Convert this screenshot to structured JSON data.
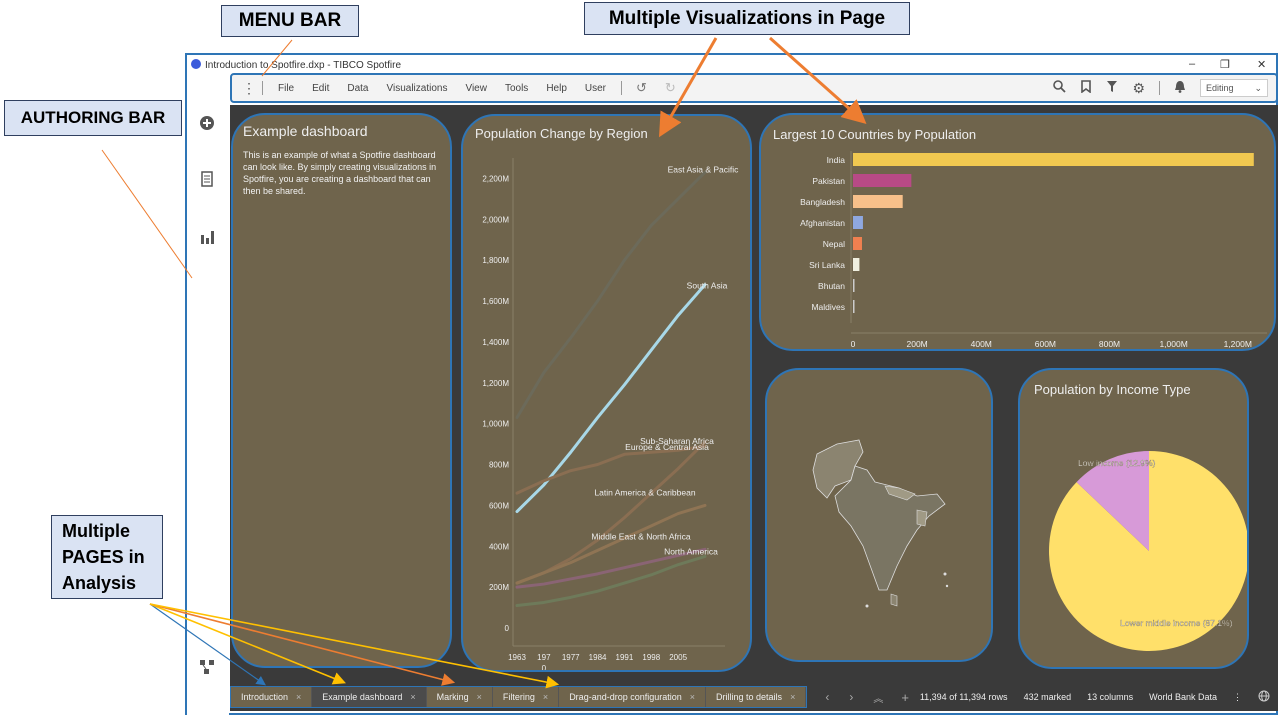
{
  "annotations": {
    "menu_bar": "MENU BAR",
    "multi_viz": "Multiple Visualizations in Page",
    "authoring_bar": "AUTHORING BAR",
    "multi_pages_l1": "Multiple",
    "multi_pages_l2": "PAGES in",
    "multi_pages_l3": "Analysis"
  },
  "window": {
    "title": "Introduction to Spotfire.dxp - TIBCO Spotfire",
    "minimize": "–",
    "restore": "❐",
    "close": "✕"
  },
  "menu": {
    "items": [
      "File",
      "Edit",
      "Data",
      "Visualizations",
      "View",
      "Tools",
      "Help",
      "User"
    ],
    "mode": "Editing"
  },
  "icons": {
    "more": "kebab-icon",
    "undo": "undo-icon",
    "redo": "redo-icon",
    "search": "search-icon",
    "bookmark": "bookmark-icon",
    "filter": "filter-icon",
    "settings": "gear-icon",
    "notification": "bell-icon",
    "chevron": "chevron-down-icon"
  },
  "text_panel": {
    "title": "Example dashboard",
    "body": "This is an example of what a Spotfire dashboard can look like. By simply creating visualizations in Spotfire, you are creating a dashboard that can then be shared."
  },
  "colors": {
    "panel_bg": "#6f644c",
    "canvas_bg": "#3a3a3a",
    "annotation_blue": "#2e75b6",
    "arrow_orange": "#ed7d31",
    "arrow_gold": "#ffc000"
  },
  "chart_data": [
    {
      "type": "line",
      "title": "Population Change by Region",
      "x": [
        1963,
        1970,
        1977,
        1984,
        1991,
        1998,
        2005,
        2012
      ],
      "x_tick_labels": [
        "1963",
        "197",
        "1977",
        "1984",
        "1991",
        "1998",
        "2005"
      ],
      "x_tick_sublabel": "0",
      "y_ticks": [
        "0",
        "200M",
        "400M",
        "600M",
        "800M",
        "1,000M",
        "1,200M",
        "1,400M",
        "1,600M",
        "1,800M",
        "2,000M",
        "2,200M"
      ],
      "ylim": [
        0,
        2300
      ],
      "series": [
        {
          "name": "East Asia & Pacific",
          "color": "#6c6a5a",
          "values": [
            1030,
            1250,
            1420,
            1600,
            1800,
            1970,
            2100,
            2230
          ]
        },
        {
          "name": "South Asia",
          "color": "#a8d8e8",
          "values": [
            570,
            700,
            860,
            1030,
            1190,
            1360,
            1530,
            1680
          ]
        },
        {
          "name": "Sub-Saharan Africa",
          "color": "#8a6e52",
          "values": [
            220,
            270,
            340,
            430,
            540,
            660,
            780,
            910
          ]
        },
        {
          "name": "Europe & Central Asia",
          "color": "#8a6e52",
          "values": [
            660,
            720,
            770,
            800,
            850,
            860,
            870,
            890
          ]
        },
        {
          "name": "Latin America & Caribbean",
          "color": "#8f7454",
          "values": [
            220,
            270,
            320,
            380,
            440,
            500,
            560,
            600
          ]
        },
        {
          "name": "Middle East & North Africa",
          "color": "#8a6474",
          "values": [
            200,
            215,
            240,
            265,
            295,
            325,
            355,
            385
          ]
        },
        {
          "name": "North America",
          "color": "#6e7a5a",
          "values": [
            110,
            125,
            150,
            180,
            220,
            260,
            310,
            350
          ]
        }
      ]
    },
    {
      "type": "bar",
      "title": "Largest 10 Countries by Population",
      "categories": [
        "India",
        "Pakistan",
        "Bangladesh",
        "Afghanistan",
        "Nepal",
        "Sri Lanka",
        "Bhutan",
        "Maldives"
      ],
      "values": [
        1250,
        182,
        155,
        31,
        28,
        20,
        0.8,
        0.4
      ],
      "colors": [
        "#f0c850",
        "#b84a86",
        "#f7c08a",
        "#8fa8e0",
        "#f08050",
        "#f0f0e0",
        "#cccccc",
        "#cccccc"
      ],
      "x_ticks": [
        "0",
        "200M",
        "400M",
        "600M",
        "800M",
        "1,000M",
        "1,200M"
      ],
      "xlim": [
        0,
        1260
      ]
    },
    {
      "type": "pie",
      "title": "Population by Income Type",
      "slices": [
        {
          "label": "Low income (12.9%)",
          "value": 12.9,
          "color": "#d79ad8"
        },
        {
          "label": "Lower middle income (87.1%)",
          "value": 87.1,
          "color": "#ffe06a"
        }
      ]
    }
  ],
  "tabs": [
    {
      "label": "Introduction",
      "close": "×"
    },
    {
      "label": "Example dashboard",
      "close": "×"
    },
    {
      "label": "Marking",
      "close": "×"
    },
    {
      "label": "Filtering",
      "close": "×"
    },
    {
      "label": "Drag-and-drop configuration",
      "close": "×"
    },
    {
      "label": "Drilling to details",
      "close": "×"
    }
  ],
  "status": {
    "rows": "11,394 of 11,394 rows",
    "marked": "432 marked",
    "columns": "13 columns",
    "source": "World Bank Data"
  }
}
